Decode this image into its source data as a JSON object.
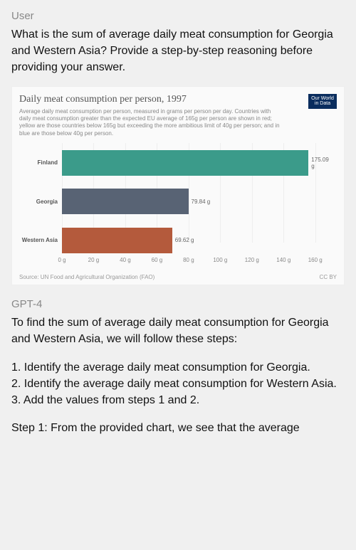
{
  "user": {
    "role_label": "User",
    "question": "What is the sum of average daily meat consumption for Georgia and Western Asia? Provide a step-by-step reasoning before providing your answer."
  },
  "chart": {
    "type": "bar",
    "title": "Daily meat consumption per person, 1997",
    "subtitle": "Average daily meat consumption per person, measured in grams per person per day. Countries with daily meat consumption greater than the expected EU average of 165g per person are shown in red; yellow are those countries below 165g but exceeding the more ambitious limit of 40g per person; and in blue are those below 40g per person.",
    "badge_line1": "Our World",
    "badge_line2": "in Data",
    "badge_bg": "#0a2d5e",
    "background_color": "#fafafa",
    "grid_color": "#eeeeee",
    "label_color": "#555555",
    "value_color": "#666666",
    "tick_color": "#888888",
    "bars": [
      {
        "label": "Finland",
        "value": 175.09,
        "value_label": "175.09 g",
        "color": "#3b9b8a",
        "top_pct": 6
      },
      {
        "label": "Georgia",
        "value": 79.84,
        "value_label": "79.84 g",
        "color": "#586374",
        "top_pct": 40
      },
      {
        "label": "Western Asia",
        "value": 69.62,
        "value_label": "69.62 g",
        "color": "#b45a3c",
        "top_pct": 74
      }
    ],
    "x_axis": {
      "min": 0,
      "max": 170,
      "unit": "g",
      "ticks": [
        {
          "v": 0,
          "label": "0 g"
        },
        {
          "v": 20,
          "label": "20 g"
        },
        {
          "v": 40,
          "label": "40 g"
        },
        {
          "v": 60,
          "label": "60 g"
        },
        {
          "v": 80,
          "label": "80 g"
        },
        {
          "v": 100,
          "label": "100 g"
        },
        {
          "v": 120,
          "label": "120 g"
        },
        {
          "v": 140,
          "label": "140 g"
        },
        {
          "v": 160,
          "label": "160 g"
        }
      ]
    },
    "source": "Source: UN Food and Agricultural Organization (FAO)",
    "license": "CC BY"
  },
  "gpt": {
    "role_label": "GPT-4",
    "paragraphs": [
      "To find the sum of average daily meat consumption for Georgia and Western Asia, we will follow these steps:",
      "1. Identify the average daily meat consumption for Georgia.",
      "2. Identify the average daily meat consumption for Western Asia.",
      "3. Add the values from steps 1 and 2.",
      "Step 1: From the provided chart, we see that the average"
    ]
  }
}
